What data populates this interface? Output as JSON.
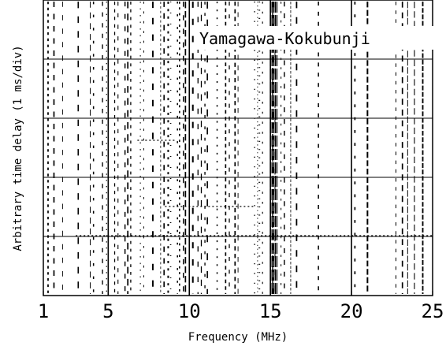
{
  "chart_data": {
    "type": "scatter",
    "title": "",
    "annotation": "Yamagawa-Kokubunji",
    "xlabel": "Frequency (MHz)",
    "ylabel": "Arbitrary time delay (1 ms/div)",
    "xlim": [
      1,
      25
    ],
    "x_ticks": [
      1,
      5,
      10,
      15,
      20,
      25
    ],
    "x_tick_labels": [
      "1",
      "5",
      "10",
      "15",
      "20",
      "25"
    ],
    "y_divisions": 5,
    "grid": true,
    "legend": "none",
    "colors": {
      "ink": "#000000",
      "background": "#ffffff"
    }
  }
}
